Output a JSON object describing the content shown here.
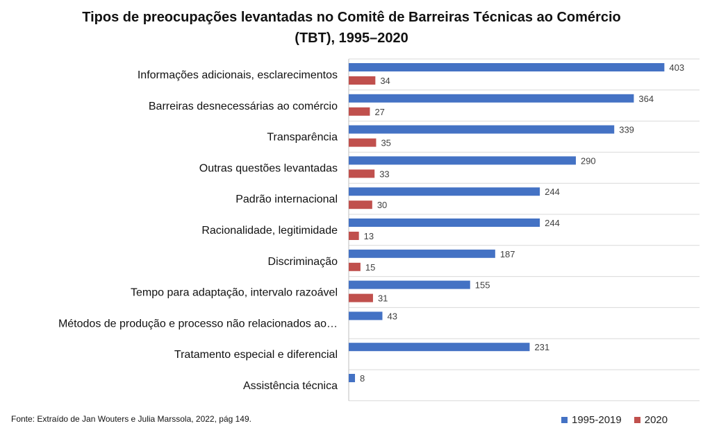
{
  "chart_data": {
    "type": "bar",
    "orientation": "horizontal",
    "title": "Tipos de preocupações levantadas no Comitê de Barreiras Técnicas ao Comércio (TBT), 1995–2020",
    "title_lines": [
      "Tipos de preocupações levantadas no Comitê de Barreiras Técnicas ao Comércio",
      "(TBT), 1995–2020"
    ],
    "categories": [
      "Informações adicionais, esclarecimentos",
      "Barreiras desnecessárias ao comércio",
      "Transparência",
      "Outras questões levantadas",
      "Padrão internacional",
      "Racionalidade, legitimidade",
      "Discriminação",
      "Tempo para adaptação, intervalo razoável",
      "Métodos de produção e processo não relacionados ao…",
      "Tratamento especial e diferencial",
      "Assistência técnica"
    ],
    "series": [
      {
        "name": "1995-2019",
        "color": "#4472C4",
        "values": [
          403,
          364,
          339,
          290,
          244,
          244,
          187,
          155,
          43,
          231,
          8
        ]
      },
      {
        "name": "2020",
        "color": "#C0504D",
        "values": [
          34,
          27,
          35,
          33,
          30,
          13,
          15,
          31,
          null,
          null,
          null
        ]
      }
    ],
    "xlim": [
      0,
      430
    ],
    "grid": "horizontal separators",
    "legend_position": "bottom-right",
    "source": "Fonte: Extraído de Jan Wouters e Julia Marssola, 2022,  pág 149."
  }
}
